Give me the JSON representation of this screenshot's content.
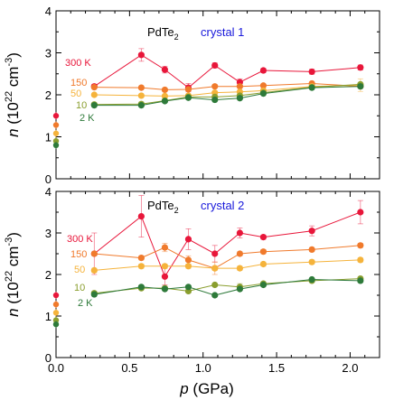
{
  "chart_data": [
    {
      "type": "line",
      "panel": "top",
      "material": "PdTe",
      "material_subscript": "2",
      "crystal_label": "crystal 1",
      "ylabel_main": "n (10",
      "ylabel_sup": "22",
      "ylabel_unit": " cm",
      "ylabel_unit_sup": "-3",
      "ylabel_close": ")",
      "xlim": [
        0,
        2.2
      ],
      "ylim": [
        0,
        4
      ],
      "yticks": [
        "0",
        "1",
        "2",
        "3",
        "4"
      ],
      "grid": false,
      "series": [
        {
          "name": "300 K",
          "color": "#e8163a",
          "x": [
            0.26,
            0.58,
            0.74,
            0.9,
            1.08,
            1.25,
            1.41,
            1.74,
            2.07
          ],
          "y": [
            2.2,
            2.95,
            2.6,
            2.17,
            2.7,
            2.3,
            2.58,
            2.55,
            2.65
          ],
          "err": [
            0.05,
            0.15,
            0.08,
            0.1,
            0.06,
            0.08,
            0.05,
            0.06,
            0.06
          ],
          "y_at_zero": 1.5
        },
        {
          "name": "150",
          "color": "#f07a2c",
          "x": [
            0.26,
            0.58,
            0.74,
            0.9,
            1.08,
            1.25,
            1.41,
            1.74,
            2.07
          ],
          "y": [
            2.18,
            2.17,
            2.12,
            2.13,
            2.2,
            2.2,
            2.22,
            2.27,
            2.2
          ],
          "err": [
            0.03,
            0.03,
            0.03,
            0.03,
            0.03,
            0.03,
            0.03,
            0.03,
            0.03
          ],
          "y_at_zero": 1.28
        },
        {
          "name": "50",
          "color": "#f5b33b",
          "x": [
            0.26,
            0.58,
            0.74,
            0.9,
            1.08,
            1.25,
            1.41,
            1.74,
            2.07
          ],
          "y": [
            2.0,
            1.98,
            1.97,
            1.98,
            2.05,
            2.07,
            2.1,
            2.2,
            2.23
          ],
          "err": [
            0.03,
            0.03,
            0.03,
            0.03,
            0.03,
            0.03,
            0.03,
            0.03,
            0.15
          ],
          "y_at_zero": 1.08
        },
        {
          "name": "10",
          "color": "#8a9e2e",
          "x": [
            0.26,
            0.58,
            0.74,
            0.9,
            1.08,
            1.25,
            1.41,
            1.74,
            2.07
          ],
          "y": [
            1.77,
            1.78,
            1.86,
            1.95,
            1.95,
            1.98,
            2.05,
            2.18,
            2.25
          ],
          "err": [
            0.03,
            0.03,
            0.03,
            0.03,
            0.03,
            0.03,
            0.03,
            0.03,
            0.03
          ],
          "y_at_zero": 0.9
        },
        {
          "name": "2 K",
          "color": "#2e7a3a",
          "x": [
            0.26,
            0.58,
            0.74,
            0.9,
            1.08,
            1.25,
            1.41,
            1.74,
            2.07
          ],
          "y": [
            1.75,
            1.75,
            1.85,
            1.93,
            1.88,
            1.92,
            2.03,
            2.17,
            2.2
          ],
          "err": [
            0.03,
            0.03,
            0.03,
            0.03,
            0.03,
            0.03,
            0.03,
            0.03,
            0.03
          ],
          "y_at_zero": 0.8
        }
      ]
    },
    {
      "type": "line",
      "panel": "bottom",
      "material": "PdTe",
      "material_subscript": "2",
      "crystal_label": "crystal 2",
      "ylabel_main": "n (10",
      "ylabel_sup": "22",
      "ylabel_unit": " cm",
      "ylabel_unit_sup": "-3",
      "ylabel_close": ")",
      "xlabel_main": "p",
      "xlabel_unit": " (GPa)",
      "xlim": [
        0,
        2.2
      ],
      "ylim": [
        0,
        4
      ],
      "xticks": [
        "0.0",
        "0.5",
        "1.0",
        "1.5",
        "2.0"
      ],
      "yticks": [
        "0",
        "1",
        "2",
        "3",
        "4"
      ],
      "grid": false,
      "series": [
        {
          "name": "300 K",
          "color": "#e8163a",
          "x": [
            0.26,
            0.58,
            0.74,
            0.9,
            1.08,
            1.25,
            1.41,
            1.74,
            2.07
          ],
          "y": [
            2.5,
            3.4,
            1.95,
            2.85,
            2.5,
            3.0,
            2.9,
            3.05,
            3.5
          ],
          "err": [
            0.5,
            0.5,
            0.2,
            0.25,
            0.2,
            0.12,
            0.05,
            0.12,
            0.28
          ],
          "y_at_zero": 1.5
        },
        {
          "name": "150",
          "color": "#f07a2c",
          "x": [
            0.26,
            0.58,
            0.74,
            0.9,
            1.08,
            1.25,
            1.41,
            1.74,
            2.07
          ],
          "y": [
            2.5,
            2.4,
            2.65,
            2.35,
            2.15,
            2.5,
            2.55,
            2.6,
            2.7
          ],
          "err": [
            0.05,
            0.05,
            0.1,
            0.1,
            0.15,
            0.05,
            0.05,
            0.05,
            0.05
          ],
          "y_at_zero": 1.28
        },
        {
          "name": "50",
          "color": "#f5b33b",
          "x": [
            0.26,
            0.58,
            0.74,
            0.9,
            1.08,
            1.25,
            1.41,
            1.74,
            2.07
          ],
          "y": [
            2.1,
            2.2,
            2.2,
            2.2,
            2.15,
            2.15,
            2.25,
            2.3,
            2.35
          ],
          "err": [
            0.05,
            0.05,
            0.05,
            0.05,
            0.05,
            0.05,
            0.05,
            0.05,
            0.05
          ],
          "y_at_zero": 1.08
        },
        {
          "name": "10",
          "color": "#8a9e2e",
          "x": [
            0.26,
            0.58,
            0.74,
            0.9,
            1.08,
            1.25,
            1.41,
            1.74,
            2.07
          ],
          "y": [
            1.55,
            1.67,
            1.67,
            1.6,
            1.75,
            1.7,
            1.78,
            1.85,
            1.9
          ],
          "err": [
            0.03,
            0.03,
            0.03,
            0.03,
            0.03,
            0.08,
            0.03,
            0.03,
            0.03
          ],
          "y_at_zero": 0.9
        },
        {
          "name": "2 K",
          "color": "#2e7a3a",
          "x": [
            0.26,
            0.58,
            0.74,
            0.9,
            1.08,
            1.25,
            1.41,
            1.74,
            2.07
          ],
          "y": [
            1.52,
            1.7,
            1.65,
            1.7,
            1.5,
            1.65,
            1.75,
            1.88,
            1.85
          ],
          "err": [
            0.03,
            0.03,
            0.03,
            0.03,
            0.03,
            0.03,
            0.03,
            0.03,
            0.03
          ],
          "y_at_zero": 0.8
        }
      ]
    }
  ]
}
